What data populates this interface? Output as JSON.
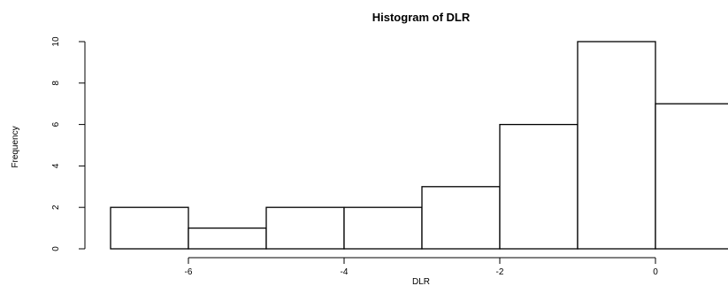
{
  "chart_data": {
    "type": "bar",
    "title": "Histogram of DLR",
    "xlabel": "DLR",
    "ylabel": "Frequency",
    "bins": [
      {
        "from": -7,
        "to": -6,
        "count": 2
      },
      {
        "from": -6,
        "to": -5,
        "count": 1
      },
      {
        "from": -5,
        "to": -4,
        "count": 2
      },
      {
        "from": -4,
        "to": -3,
        "count": 2
      },
      {
        "from": -3,
        "to": -2,
        "count": 3
      },
      {
        "from": -2,
        "to": -1,
        "count": 6
      },
      {
        "from": -1,
        "to": 0,
        "count": 10
      },
      {
        "from": 0,
        "to": 1,
        "count": 7
      }
    ],
    "x_ticks": [
      {
        "value": -6,
        "label": "-6"
      },
      {
        "value": -4,
        "label": "-4"
      },
      {
        "value": -2,
        "label": "-2"
      },
      {
        "value": 0,
        "label": "0"
      }
    ],
    "y_ticks": [
      {
        "value": 0,
        "label": "0"
      },
      {
        "value": 2,
        "label": "2"
      },
      {
        "value": 4,
        "label": "4"
      },
      {
        "value": 6,
        "label": "6"
      },
      {
        "value": 8,
        "label": "8"
      },
      {
        "value": 10,
        "label": "10"
      }
    ],
    "xlim": [
      -7,
      1
    ],
    "ylim": [
      0,
      10
    ],
    "grid": false,
    "bar_fill": "#ffffff",
    "bar_stroke": "#000000"
  }
}
